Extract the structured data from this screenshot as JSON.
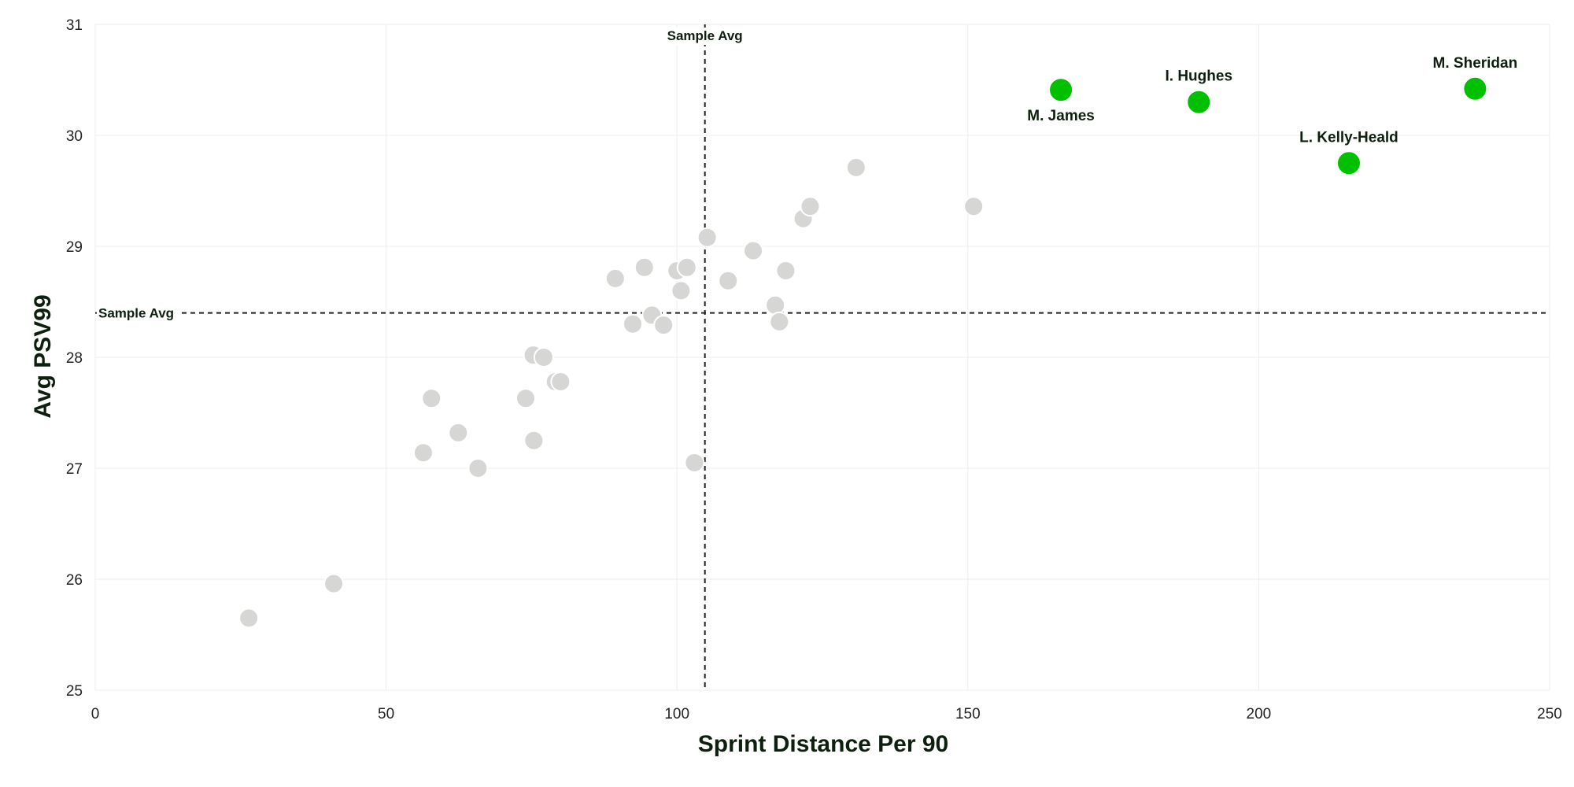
{
  "chart_data": {
    "type": "scatter",
    "xlabel": "Sprint Distance Per 90",
    "ylabel": "Avg PSV99",
    "xlim": [
      0,
      250
    ],
    "ylim": [
      25,
      31
    ],
    "x_ticks": [
      0,
      50,
      100,
      150,
      200,
      250
    ],
    "y_ticks": [
      25,
      26,
      27,
      28,
      29,
      30,
      31
    ],
    "grid": true,
    "reference_lines": {
      "x_avg": {
        "value": 104.8,
        "label": "Sample Avg"
      },
      "y_avg": {
        "value": 28.4,
        "label": "Sample Avg"
      }
    },
    "colors": {
      "highlight": "#00c000",
      "other": "#d6d6d4",
      "reference": "#222222",
      "text": "#0f1f0f"
    },
    "highlighted": [
      {
        "name": "M. James",
        "x": 166,
        "y": 30.41,
        "label_position": "below"
      },
      {
        "name": "I. Hughes",
        "x": 189.7,
        "y": 30.3,
        "label_position": "above"
      },
      {
        "name": "L. Kelly-Heald",
        "x": 215.5,
        "y": 29.75,
        "label_position": "above"
      },
      {
        "name": "M. Sheridan",
        "x": 237.2,
        "y": 30.42,
        "label_position": "above"
      }
    ],
    "others": [
      {
        "x": 26.4,
        "y": 25.65
      },
      {
        "x": 41,
        "y": 25.96
      },
      {
        "x": 56.4,
        "y": 27.14
      },
      {
        "x": 57.8,
        "y": 27.63
      },
      {
        "x": 62.4,
        "y": 27.32
      },
      {
        "x": 65.8,
        "y": 27.0
      },
      {
        "x": 74,
        "y": 27.63
      },
      {
        "x": 75.3,
        "y": 28.02
      },
      {
        "x": 75.4,
        "y": 27.25
      },
      {
        "x": 77.1,
        "y": 28.0
      },
      {
        "x": 79.1,
        "y": 27.78
      },
      {
        "x": 80,
        "y": 27.78
      },
      {
        "x": 89.4,
        "y": 28.71
      },
      {
        "x": 92.4,
        "y": 28.3
      },
      {
        "x": 94.4,
        "y": 28.81
      },
      {
        "x": 95.7,
        "y": 28.38
      },
      {
        "x": 97.7,
        "y": 28.29
      },
      {
        "x": 100,
        "y": 28.78
      },
      {
        "x": 100.7,
        "y": 28.6
      },
      {
        "x": 101.7,
        "y": 28.81
      },
      {
        "x": 103,
        "y": 27.05
      },
      {
        "x": 105.2,
        "y": 29.08
      },
      {
        "x": 108.8,
        "y": 28.69
      },
      {
        "x": 113.1,
        "y": 28.96
      },
      {
        "x": 116.9,
        "y": 28.47
      },
      {
        "x": 117.6,
        "y": 28.32
      },
      {
        "x": 118.7,
        "y": 28.78
      },
      {
        "x": 121.7,
        "y": 29.25
      },
      {
        "x": 122.9,
        "y": 29.36
      },
      {
        "x": 130.8,
        "y": 29.71
      },
      {
        "x": 151,
        "y": 29.36
      }
    ]
  }
}
